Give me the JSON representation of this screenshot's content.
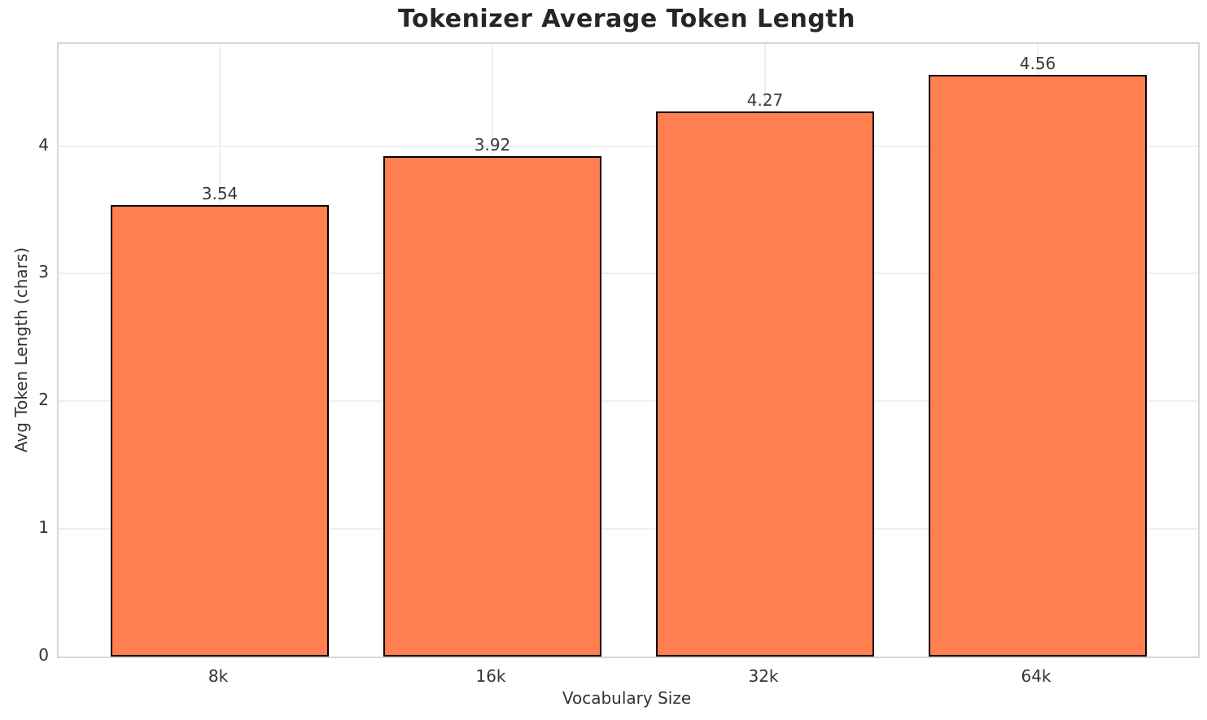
{
  "chart_data": {
    "type": "bar",
    "title": "Tokenizer Average Token Length",
    "xlabel": "Vocabulary Size",
    "ylabel": "Avg Token Length (chars)",
    "categories": [
      "8k",
      "16k",
      "32k",
      "64k"
    ],
    "values": [
      3.54,
      3.92,
      4.27,
      4.56
    ],
    "value_labels": [
      "3.54",
      "3.92",
      "4.27",
      "4.56"
    ],
    "yticks": [
      0,
      1,
      2,
      3,
      4
    ],
    "ytick_labels": [
      "0",
      "1",
      "2",
      "3",
      "4"
    ],
    "ylim": [
      0,
      4.8
    ],
    "grid": true,
    "legend": "none",
    "bar_color": "#FF7F50",
    "bar_edge_color": "#000000",
    "grid_color": "#efefef",
    "spine_color": "#d6d6d6",
    "title_color": "#262626",
    "tick_color": "#333333"
  }
}
